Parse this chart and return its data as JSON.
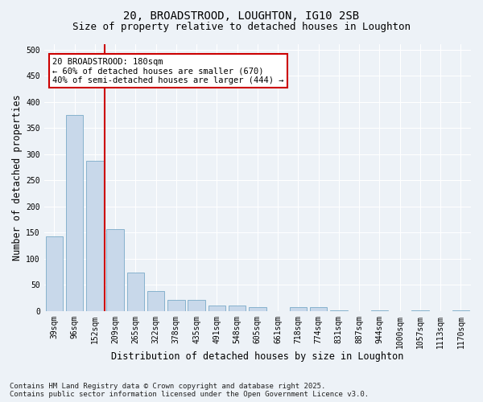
{
  "title_line1": "20, BROADSTROOD, LOUGHTON, IG10 2SB",
  "title_line2": "Size of property relative to detached houses in Loughton",
  "xlabel": "Distribution of detached houses by size in Loughton",
  "ylabel": "Number of detached properties",
  "categories": [
    "39sqm",
    "96sqm",
    "152sqm",
    "209sqm",
    "265sqm",
    "322sqm",
    "378sqm",
    "435sqm",
    "491sqm",
    "548sqm",
    "605sqm",
    "661sqm",
    "718sqm",
    "774sqm",
    "831sqm",
    "887sqm",
    "944sqm",
    "1000sqm",
    "1057sqm",
    "1113sqm",
    "1170sqm"
  ],
  "values": [
    142,
    375,
    287,
    157,
    73,
    38,
    22,
    22,
    10,
    10,
    8,
    0,
    8,
    8,
    2,
    0,
    2,
    0,
    2,
    0,
    1
  ],
  "bar_color": "#c8d8ea",
  "bar_edge_color": "#7aaac8",
  "vline_color": "#cc0000",
  "vline_xindex": 2.5,
  "annotation_text": "20 BROADSTROOD: 180sqm\n← 60% of detached houses are smaller (670)\n40% of semi-detached houses are larger (444) →",
  "annotation_box_color": "#ffffff",
  "annotation_box_edge": "#cc0000",
  "background_color": "#edf2f7",
  "grid_color": "#ffffff",
  "footer_line1": "Contains HM Land Registry data © Crown copyright and database right 2025.",
  "footer_line2": "Contains public sector information licensed under the Open Government Licence v3.0.",
  "ylim": [
    0,
    510
  ],
  "yticks": [
    0,
    50,
    100,
    150,
    200,
    250,
    300,
    350,
    400,
    450,
    500
  ],
  "title_fontsize": 10,
  "subtitle_fontsize": 9,
  "axis_label_fontsize": 8.5,
  "tick_fontsize": 7,
  "footer_fontsize": 6.5,
  "annotation_fontsize": 7.5
}
